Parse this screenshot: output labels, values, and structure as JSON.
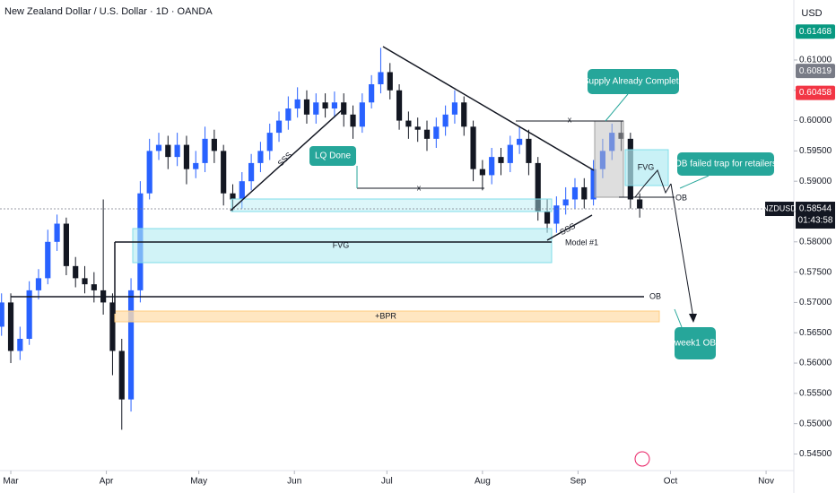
{
  "header": {
    "title": "New Zealand Dollar / U.S. Dollar · 1D · OANDA",
    "currency": "USD"
  },
  "chart_data": {
    "type": "candlestick",
    "x": [
      -3,
      0,
      3,
      6,
      9,
      12,
      15,
      18,
      21,
      24,
      27,
      30,
      33,
      36,
      39,
      42,
      45,
      48,
      51,
      54,
      57,
      60,
      63,
      66,
      69,
      72,
      75,
      78,
      81,
      84,
      87,
      90,
      93,
      96,
      99,
      102,
      105,
      108,
      111,
      114,
      117,
      120,
      123,
      126,
      129,
      132,
      135,
      138,
      141,
      144,
      147,
      150,
      153,
      156,
      159,
      162,
      165,
      168,
      171,
      174,
      177,
      180,
      183,
      186,
      189,
      192,
      195,
      198,
      201,
      204
    ],
    "open": [
      0.566,
      0.57,
      0.562,
      0.564,
      0.572,
      0.574,
      0.58,
      0.583,
      0.576,
      0.574,
      0.573,
      0.572,
      0.57,
      0.562,
      0.554,
      0.572,
      0.588,
      0.595,
      0.596,
      0.594,
      0.596,
      0.592,
      0.593,
      0.597,
      0.595,
      0.588,
      0.587,
      0.59,
      0.593,
      0.595,
      0.598,
      0.6,
      0.602,
      0.6035,
      0.601,
      0.603,
      0.602,
      0.603,
      0.601,
      0.599,
      0.603,
      0.606,
      0.608,
      0.605,
      0.6,
      0.599,
      0.5985,
      0.597,
      0.599,
      0.601,
      0.603,
      0.599,
      0.592,
      0.591,
      0.594,
      0.593,
      0.596,
      0.597,
      0.593,
      0.585,
      0.583,
      0.586,
      0.587,
      0.589,
      0.587,
      0.592,
      0.595,
      0.598,
      0.597,
      0.587
    ],
    "high": [
      0.5715,
      0.5715,
      0.566,
      0.5735,
      0.5755,
      0.582,
      0.5845,
      0.584,
      0.5775,
      0.576,
      0.575,
      0.587,
      0.5715,
      0.564,
      0.574,
      0.59,
      0.597,
      0.598,
      0.5975,
      0.598,
      0.5975,
      0.595,
      0.599,
      0.5985,
      0.596,
      0.5895,
      0.5915,
      0.5945,
      0.5965,
      0.5995,
      0.6015,
      0.604,
      0.6055,
      0.605,
      0.6045,
      0.6045,
      0.6048,
      0.6045,
      0.6025,
      0.6045,
      0.6075,
      0.612,
      0.6095,
      0.606,
      0.6015,
      0.6005,
      0.6,
      0.6005,
      0.6025,
      0.605,
      0.604,
      0.6,
      0.5935,
      0.5955,
      0.5955,
      0.5975,
      0.599,
      0.5985,
      0.594,
      0.587,
      0.5875,
      0.589,
      0.5905,
      0.5905,
      0.5935,
      0.597,
      0.5995,
      0.6,
      0.598,
      0.588
    ],
    "low": [
      0.5645,
      0.56,
      0.5605,
      0.563,
      0.5705,
      0.573,
      0.5785,
      0.5745,
      0.5725,
      0.5715,
      0.57,
      0.568,
      0.558,
      0.549,
      0.552,
      0.57,
      0.587,
      0.5935,
      0.592,
      0.5925,
      0.5895,
      0.5905,
      0.5915,
      0.593,
      0.586,
      0.585,
      0.5855,
      0.5885,
      0.5915,
      0.5935,
      0.5965,
      0.5985,
      0.6005,
      0.5995,
      0.5995,
      0.6005,
      0.6005,
      0.599,
      0.597,
      0.598,
      0.602,
      0.6045,
      0.6035,
      0.5985,
      0.597,
      0.5965,
      0.595,
      0.5955,
      0.5975,
      0.5995,
      0.5975,
      0.59,
      0.5885,
      0.5895,
      0.591,
      0.5915,
      0.5945,
      0.591,
      0.5835,
      0.5815,
      0.5815,
      0.5845,
      0.5855,
      0.5855,
      0.586,
      0.5905,
      0.5935,
      0.595,
      0.5855,
      0.584
    ],
    "close": [
      0.57,
      0.562,
      0.564,
      0.572,
      0.574,
      0.58,
      0.583,
      0.576,
      0.574,
      0.573,
      0.572,
      0.57,
      0.562,
      0.554,
      0.572,
      0.588,
      0.595,
      0.596,
      0.594,
      0.596,
      0.592,
      0.593,
      0.597,
      0.595,
      0.588,
      0.587,
      0.59,
      0.593,
      0.595,
      0.598,
      0.6,
      0.602,
      0.6035,
      0.601,
      0.603,
      0.602,
      0.603,
      0.601,
      0.599,
      0.603,
      0.606,
      0.608,
      0.605,
      0.6,
      0.599,
      0.5985,
      0.597,
      0.599,
      0.601,
      0.603,
      0.599,
      0.592,
      0.591,
      0.594,
      0.593,
      0.596,
      0.597,
      0.593,
      0.585,
      0.583,
      0.586,
      0.587,
      0.589,
      0.587,
      0.592,
      0.595,
      0.598,
      0.597,
      0.587,
      0.5855
    ],
    "up_color": "#2962ff",
    "down_color": "#131722",
    "xlim": [
      -3.5,
      254
    ],
    "ylim": [
      0.543,
      0.6199
    ],
    "xticks": [
      {
        "value": 0,
        "label": "Mar"
      },
      {
        "value": 31,
        "label": "Apr"
      },
      {
        "value": 61,
        "label": "May"
      },
      {
        "value": 92,
        "label": "Jun"
      },
      {
        "value": 122,
        "label": "Jul"
      },
      {
        "value": 153,
        "label": "Aug"
      },
      {
        "value": 184,
        "label": "Sep"
      },
      {
        "value": 214,
        "label": "Oct"
      },
      {
        "value": 245,
        "label": "Nov"
      }
    ],
    "yticks": [
      {
        "value": 0.545,
        "label": "0.54500"
      },
      {
        "value": 0.55,
        "label": "0.55000"
      },
      {
        "value": 0.555,
        "label": "0.55500"
      },
      {
        "value": 0.56,
        "label": "0.56000"
      },
      {
        "value": 0.565,
        "label": "0.56500"
      },
      {
        "value": 0.57,
        "label": "0.57000"
      },
      {
        "value": 0.575,
        "label": "0.57500"
      },
      {
        "value": 0.58,
        "label": "0.58000"
      },
      {
        "value": 0.585,
        "label": "0.58500"
      },
      {
        "value": 0.59,
        "label": "0.59000"
      },
      {
        "value": 0.595,
        "label": "0.59500"
      },
      {
        "value": 0.6,
        "label": "0.60000"
      },
      {
        "value": 0.605,
        "label": "0.60500"
      },
      {
        "value": 0.61,
        "label": "0.61000"
      }
    ],
    "price_badges": [
      {
        "value": 0.61468,
        "color": "#089981"
      },
      {
        "value": 0.60819,
        "color": "#787b86"
      },
      {
        "value": 0.60458,
        "color": "#f23645"
      }
    ],
    "last_price": 0.58544,
    "symbol": "NZDUSD",
    "countdown": "01:43:58",
    "annotations": {
      "supply": "Supply Already Complete",
      "lq": "LQ Done",
      "ob_trap": "OB failed trap for retailers",
      "week1": "week1 OB",
      "fvg_left": "FVG",
      "fvg_right": "FVG",
      "x1": "x",
      "x2": "x",
      "sss1": "SSS",
      "sss2": "SSS",
      "model": "Model #1",
      "ob1": "OB",
      "ob2": "OB",
      "bpr": "+BPR"
    }
  }
}
